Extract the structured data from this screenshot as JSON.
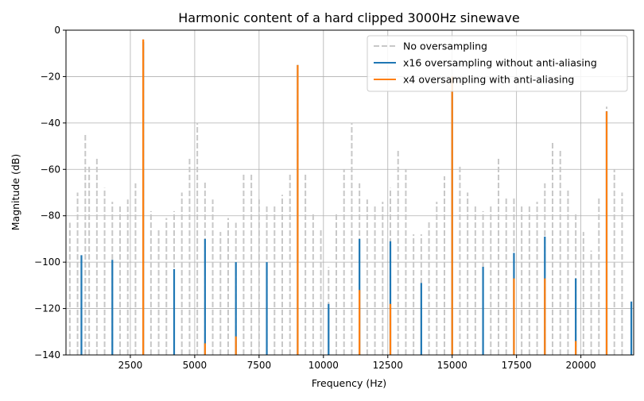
{
  "chart_data": {
    "type": "spectrum",
    "title": "Harmonic content of a hard clipped 3000Hz sinewave",
    "xlabel": "Frequency (Hz)",
    "ylabel": "Magnitude (dB)",
    "xlim": [
      0,
      22050
    ],
    "ylim": [
      -140,
      0
    ],
    "xticks": [
      2500,
      5000,
      7500,
      10000,
      12500,
      15000,
      17500,
      20000
    ],
    "yticks": [
      0,
      -20,
      -40,
      -60,
      -80,
      -100,
      -120,
      -140
    ],
    "grid": true,
    "legend_position": "top-right",
    "series": [
      {
        "name": "No oversampling",
        "style": "dashed",
        "color": "#c8c8c8",
        "x": [
          150,
          450,
          750,
          900,
          1200,
          1500,
          1800,
          2100,
          2400,
          2700,
          3000,
          3300,
          3600,
          3900,
          4200,
          4500,
          4800,
          5100,
          5400,
          5700,
          6000,
          6300,
          6600,
          6900,
          7200,
          7500,
          7800,
          8100,
          8400,
          8700,
          9000,
          9300,
          9600,
          9900,
          10200,
          10500,
          10800,
          11100,
          11400,
          11700,
          12000,
          12300,
          12600,
          12900,
          13200,
          13500,
          13800,
          14100,
          14400,
          14700,
          15000,
          15300,
          15600,
          15900,
          16200,
          16500,
          16800,
          17100,
          17400,
          17700,
          18000,
          18300,
          18600,
          18900,
          19200,
          19500,
          19800,
          20100,
          20400,
          20700,
          21000,
          21300,
          21600
        ],
        "values": [
          -83,
          -70,
          -45,
          -58,
          -55,
          -68,
          -74,
          -75,
          -73,
          -66,
          -4,
          -78,
          -86,
          -81,
          -78,
          -70,
          -55,
          -40,
          -65,
          -73,
          -87,
          -81,
          -83,
          -62,
          -62,
          -73,
          -76,
          -75,
          -71,
          -62,
          -15,
          -62,
          -79,
          -86,
          -102,
          -79,
          -60,
          -40,
          -66,
          -73,
          -75,
          -74,
          -68,
          -51,
          -60,
          -88,
          -88,
          -82,
          -74,
          -63,
          -20,
          -58,
          -70,
          -76,
          -78,
          -76,
          -55,
          -72,
          -72,
          -76,
          -76,
          -74,
          -66,
          -48,
          -51,
          -69,
          -79,
          -87,
          -95,
          -72,
          -33,
          -60,
          -70
        ]
      },
      {
        "name": "x16 oversampling without anti-aliasing",
        "style": "solid",
        "color": "#1f77b4",
        "x": [
          600,
          1800,
          3000,
          4200,
          5400,
          6600,
          7800,
          9000,
          10200,
          11400,
          12600,
          13800,
          15000,
          16200,
          17400,
          18600,
          19800,
          21000,
          21960
        ],
        "values": [
          -97,
          -99,
          -5,
          -103,
          -90,
          -100,
          -100,
          -15,
          -118,
          -90,
          -91,
          -109,
          -20,
          -102,
          -96,
          -89,
          -107,
          -35,
          -117
        ]
      },
      {
        "name": "x4 oversampling with anti-aliasing",
        "style": "solid",
        "color": "#ff7f0e",
        "x": [
          3000,
          5400,
          6600,
          9000,
          11400,
          12600,
          15000,
          17400,
          18600,
          19800,
          21000
        ],
        "values": [
          -4,
          -135,
          -132,
          -15,
          -112,
          -118,
          -20,
          -107,
          -107,
          -134,
          -35
        ]
      }
    ]
  }
}
